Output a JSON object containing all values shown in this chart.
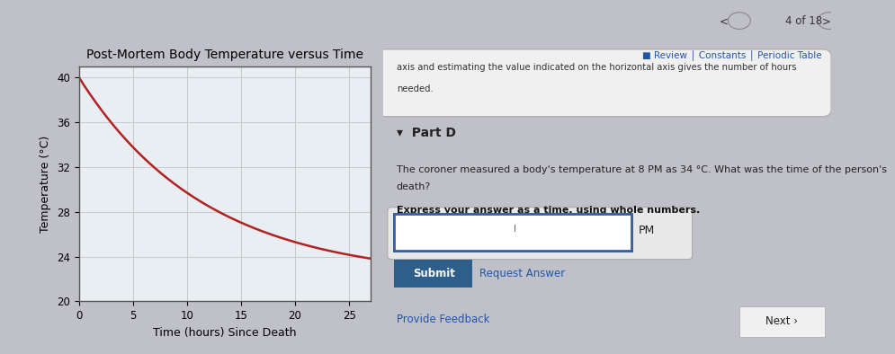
{
  "title": "Post-Mortem Body Temperature versus Time",
  "xlabel": "Time (hours) Since Death",
  "ylabel": "Temperature (°C)",
  "xlim": [
    0,
    27
  ],
  "ylim": [
    20,
    41
  ],
  "xticks": [
    0,
    5,
    10,
    15,
    20,
    25
  ],
  "yticks": [
    20,
    24,
    28,
    32,
    36,
    40
  ],
  "curve_color": "#b22222",
  "curve_linewidth": 1.8,
  "T0": 40.0,
  "T_ambient": 22.0,
  "decay_constant": 0.085,
  "grid_color": "#c8c8c8",
  "plot_bg": "#e8eef2",
  "left_panel_bg": "#c8dce6",
  "right_panel_bg": "#e8e8e8",
  "fig_bg": "#c0c0c8",
  "title_fontsize": 10,
  "label_fontsize": 9,
  "tick_fontsize": 8.5,
  "nav_text": "4 of 18",
  "review_text": "■ Review │ Constants │ Periodic Table",
  "top_text1": "axis and estimating the value indicated on the horizontal axis gives the number of hours",
  "top_text2": "needed.",
  "part_label": "▾  Part D",
  "body_text1": "The coroner measured a body's temperature at 8 PM as 34 °C. What was the time of the person's",
  "body_text2": "death?",
  "bold_text": "Express your answer as a time, using whole numbers.",
  "pm_label": "PM",
  "submit_label": "Submit",
  "request_label": "Request Answer",
  "feedback_label": "Provide Feedback",
  "next_label": "Next ›",
  "submit_color": "#2d5f8a",
  "input_border_color": "#3a5fa0",
  "link_color": "#2255aa"
}
